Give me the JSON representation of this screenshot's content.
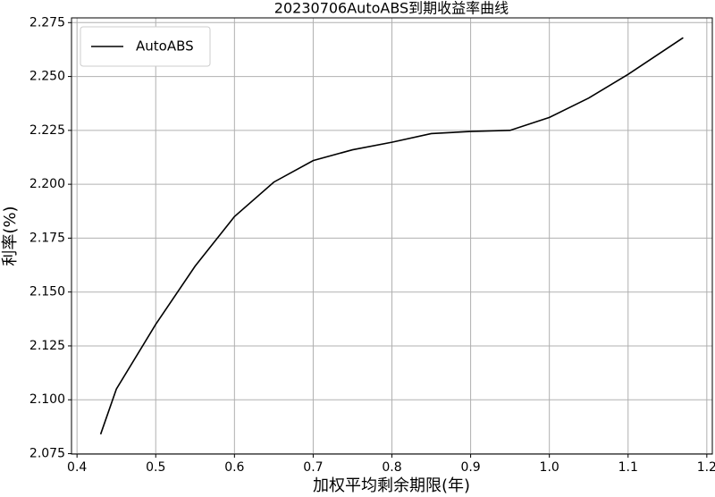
{
  "chart_data": {
    "type": "line",
    "title": "20230706AutoABS到期收益率曲线",
    "x_label": "加权平均剩余期限(年)",
    "y_label": "利率(%)",
    "x": [
      0.43,
      0.45,
      0.5,
      0.55,
      0.6,
      0.65,
      0.7,
      0.75,
      0.8,
      0.85,
      0.9,
      0.95,
      1.0,
      1.05,
      1.1,
      1.17
    ],
    "series": [
      {
        "name": "AutoABS",
        "color": "#000000",
        "values": [
          2.084,
          2.105,
          2.135,
          2.162,
          2.185,
          2.201,
          2.211,
          2.216,
          2.2195,
          2.2235,
          2.2245,
          2.225,
          2.231,
          2.24,
          2.251,
          2.268
        ]
      }
    ],
    "xlim": [
      0.393,
      1.207
    ],
    "ylim": [
      2.0748,
      2.2772
    ],
    "xticks": [
      0.4,
      0.5,
      0.6,
      0.7,
      0.8,
      0.9,
      {
        "value": 1.0,
        "label": "1.0"
      },
      1.1,
      1.2
    ],
    "yticks": [
      2.075,
      {
        "value": 2.1,
        "label": "2.100"
      },
      2.125,
      {
        "value": 2.15,
        "label": "2.150"
      },
      2.175,
      {
        "value": 2.2,
        "label": "2.200"
      },
      2.225,
      {
        "value": 2.25,
        "label": "2.250"
      },
      2.275
    ],
    "grid": true,
    "legend": "upper left"
  }
}
